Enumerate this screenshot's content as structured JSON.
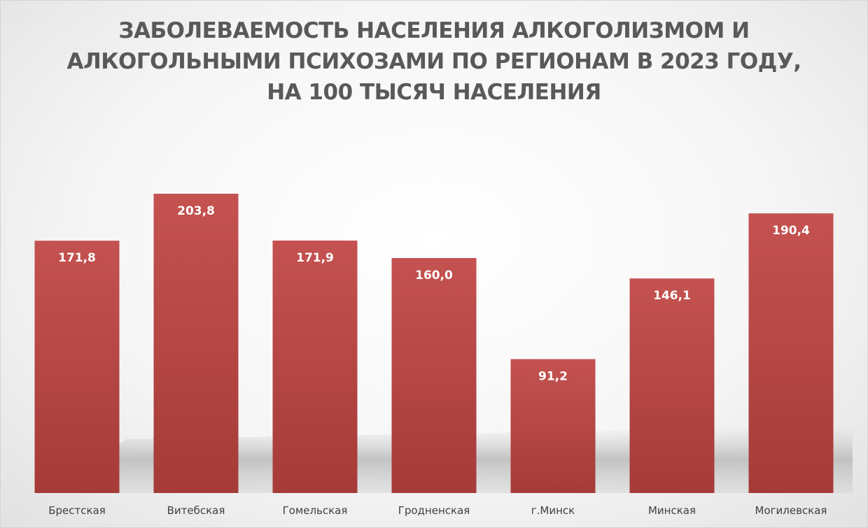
{
  "chart_data": {
    "type": "bar",
    "title_lines": [
      "ЗАБОЛЕВАЕМОСТЬ НАСЕЛЕНИЯ АЛКОГОЛИЗМОМ И",
      "АЛКОГОЛЬНЫМИ ПСИХОЗАМИ ПО РЕГИОНАМ В 2023 ГОДУ,",
      "НА 100 ТЫСЯЧ НАСЕЛЕНИЯ"
    ],
    "categories": [
      "Брестская",
      "Витебская",
      "Гомельская",
      "Гродненская",
      "г.Минск",
      "Минская",
      "Могилевская"
    ],
    "values": [
      171.8,
      203.8,
      171.9,
      160.0,
      91.2,
      146.1,
      190.4
    ],
    "value_labels": [
      "171,8",
      "203,8",
      "171,9",
      "160,0",
      "91,2",
      "146,1",
      "190,4"
    ],
    "ylim": [
      0,
      255
    ],
    "grid": false,
    "legend": "none",
    "colors": {
      "bar_top": "#c0504d",
      "bar_bottom": "#a63a37",
      "label": "#ffffff",
      "title": "#595959",
      "axis_text": "#404040"
    }
  }
}
